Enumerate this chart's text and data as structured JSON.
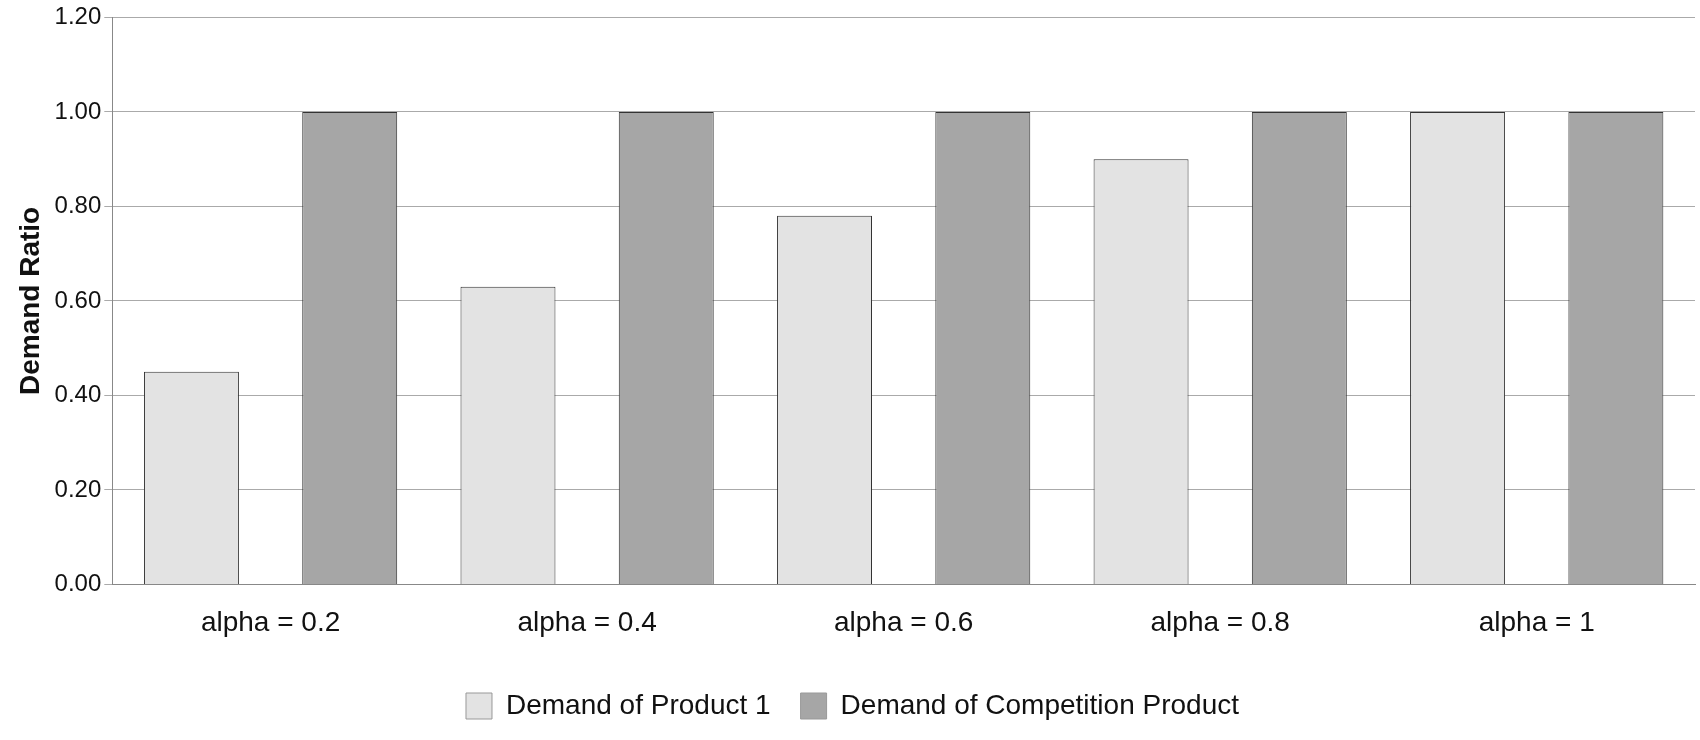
{
  "chart_data": {
    "type": "bar",
    "ylabel": "Demand Ratio",
    "categories": [
      "alpha = 0.2",
      "alpha = 0.4",
      "alpha = 0.6",
      "alpha = 0.8",
      "alpha = 1"
    ],
    "series": [
      {
        "name": "Demand of Product 1",
        "color": "#e3e3e3",
        "values": [
          0.45,
          0.63,
          0.78,
          0.9,
          1.0
        ]
      },
      {
        "name": "Demand of Competition Product",
        "color": "#a6a6a6",
        "values": [
          1.0,
          1.0,
          1.0,
          1.0,
          1.0
        ]
      }
    ],
    "ylim": [
      0,
      1.2
    ],
    "yticks": [
      {
        "value": 0,
        "label": "0.00"
      },
      {
        "value": 0.2,
        "label": "0.20"
      },
      {
        "value": 0.4,
        "label": "0.40"
      },
      {
        "value": 0.6,
        "label": "0.60"
      },
      {
        "value": 0.8,
        "label": "0.80"
      },
      {
        "value": 1,
        "label": "1.00"
      },
      {
        "value": 1.2,
        "label": "1.20"
      }
    ],
    "grid": "y",
    "legend": "bottom"
  }
}
